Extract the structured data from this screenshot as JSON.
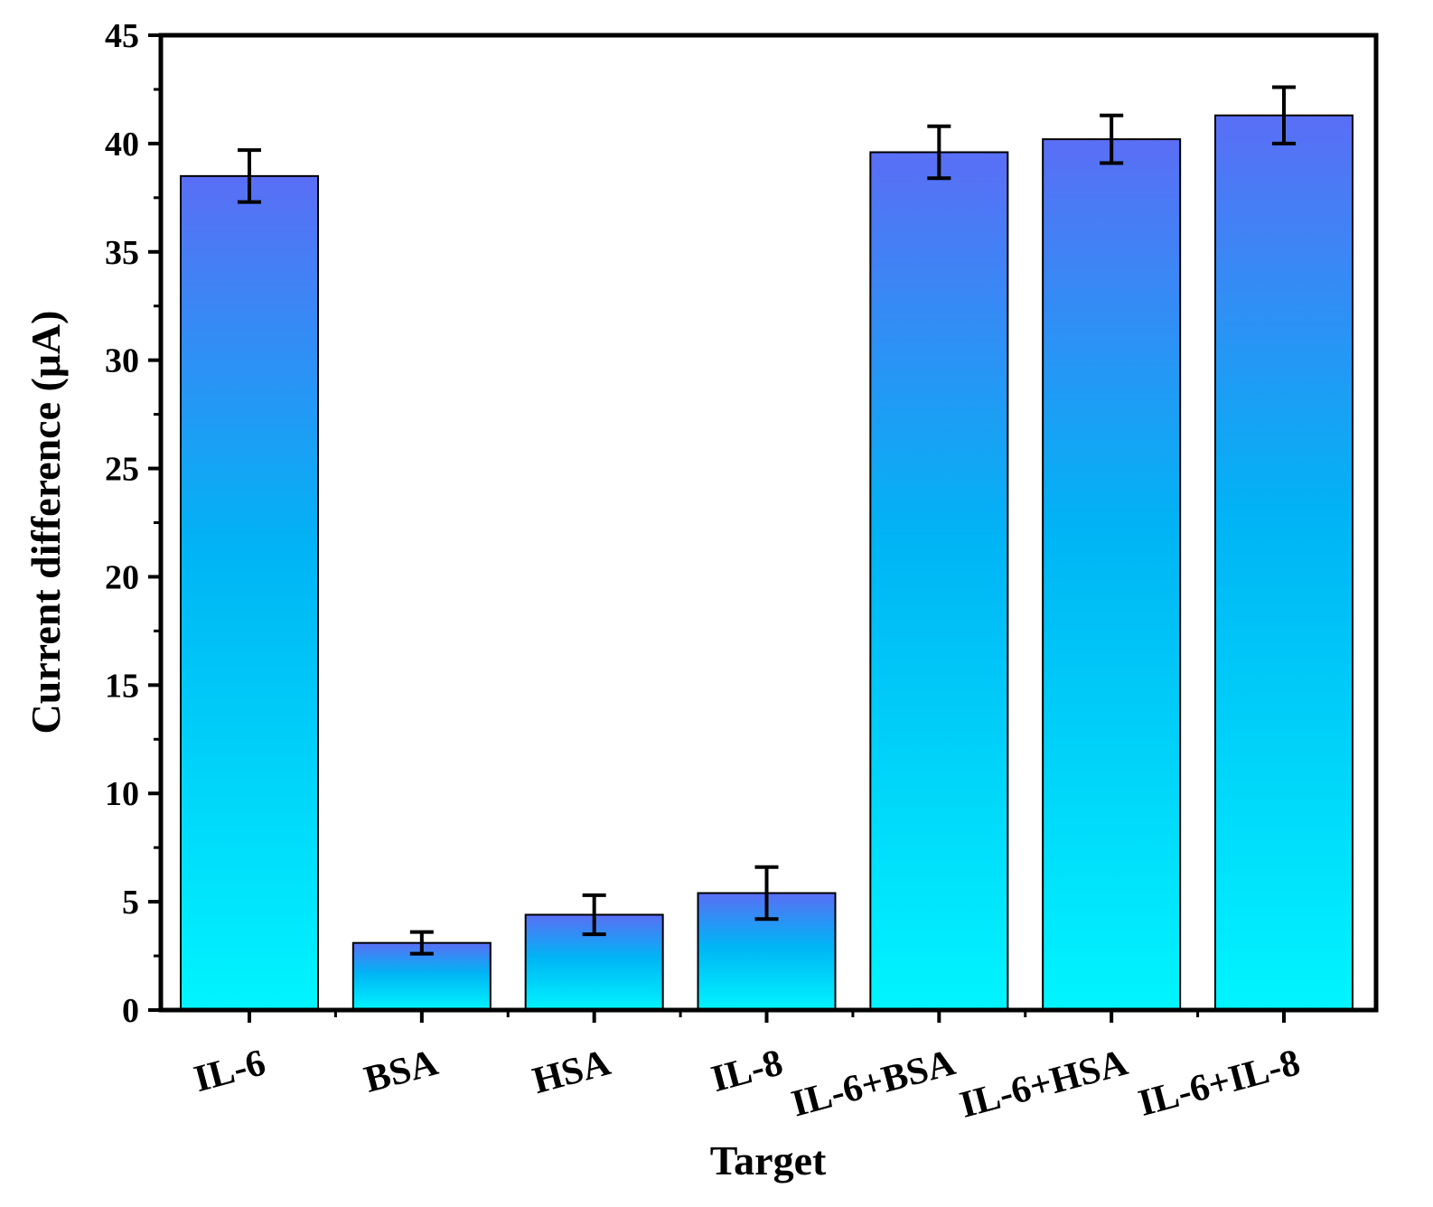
{
  "chart_data": {
    "type": "bar",
    "categories": [
      "IL-6",
      "BSA",
      "HSA",
      "IL-8",
      "IL-6+BSA",
      "IL-6+HSA",
      "IL-6+IL-8"
    ],
    "values": [
      38.5,
      3.1,
      4.4,
      5.4,
      39.6,
      40.2,
      41.3
    ],
    "errors": [
      1.2,
      0.5,
      0.9,
      1.2,
      1.2,
      1.1,
      1.3
    ],
    "xlabel": "Target",
    "ylabel": "Current difference (μA)",
    "ylim": [
      0,
      45
    ],
    "yticks": [
      "0",
      "5",
      "10",
      "15",
      "20",
      "25",
      "30",
      "35",
      "40",
      "45"
    ],
    "grid": false,
    "colors": {
      "bar_top": "#5a6ef5",
      "bar_mid": "#00b4f5",
      "bar_bottom": "#00f5ff",
      "axis": "#000000"
    }
  }
}
